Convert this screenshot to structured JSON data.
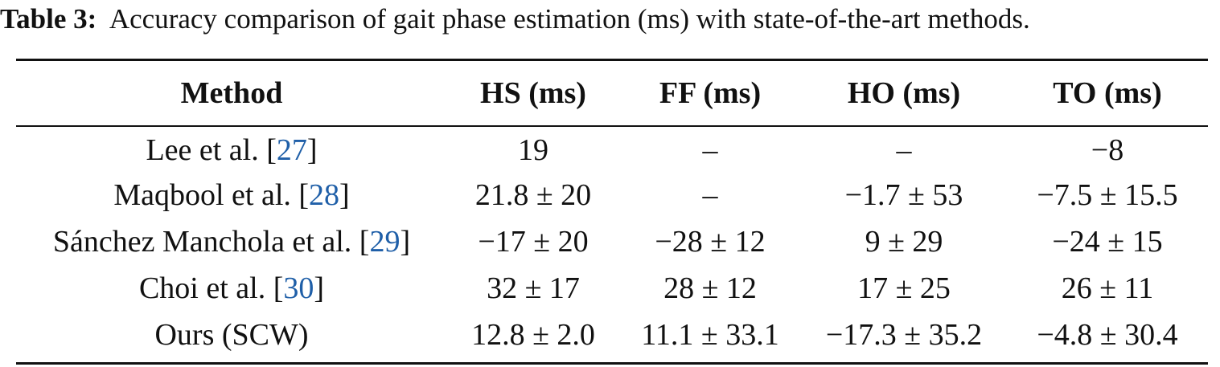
{
  "caption": {
    "label": "Table 3:",
    "text": "Accuracy comparison of gait phase estimation (ms) with state-of-the-art methods."
  },
  "table": {
    "headers": [
      "Method",
      "HS (ms)",
      "FF (ms)",
      "HO (ms)",
      "TO (ms)"
    ],
    "rows": [
      {
        "method": "Lee et al.",
        "ref": "27",
        "hs": "19",
        "ff": "–",
        "ho": "–",
        "to": "−8"
      },
      {
        "method": "Maqbool et al.",
        "ref": "28",
        "hs": "21.8 ± 20",
        "ff": "–",
        "ho": "−1.7 ± 53",
        "to": "−7.5 ± 15.5"
      },
      {
        "method": "Sánchez Manchola et al.",
        "ref": "29",
        "hs": "−17 ± 20",
        "ff": "−28 ± 12",
        "ho": "9 ± 29",
        "to": "−24 ± 15"
      },
      {
        "method": "Choi et al.",
        "ref": "30",
        "hs": "32 ± 17",
        "ff": "28 ± 12",
        "ho": "17 ± 25",
        "to": "26 ± 11"
      },
      {
        "method": "Ours (SCW)",
        "ref": "",
        "hs": "12.8 ± 2.0",
        "ff": "11.1 ± 33.1",
        "ho": "−17.3 ± 35.2",
        "to": "−4.8 ± 30.4"
      }
    ]
  },
  "colors": {
    "citation": "#1f5fa8",
    "text": "#111111"
  }
}
